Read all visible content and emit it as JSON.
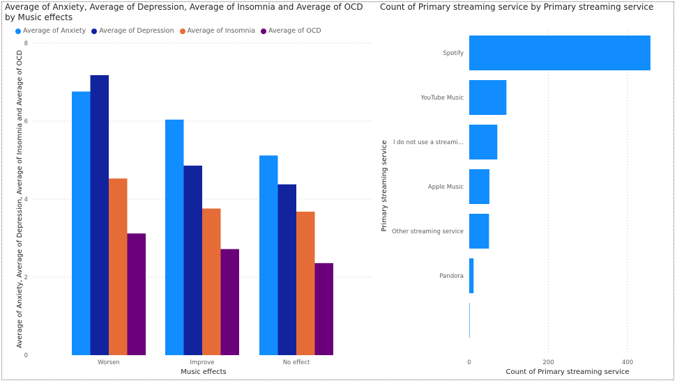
{
  "chart_data": [
    {
      "type": "bar",
      "title": "Average of Anxiety, Average of Depression, Average of Insomnia and Average of OCD by Music effects",
      "xlabel": "Music effects",
      "ylabel": "Average of Anxiety, Average of Depression, Average of Insomnia and Average of OCD",
      "categories": [
        "Worsen",
        "Improve",
        "No effect"
      ],
      "series": [
        {
          "name": "Average of Anxiety",
          "color": "#118DFF",
          "values": [
            6.76,
            6.04,
            5.12
          ]
        },
        {
          "name": "Average of Depression",
          "color": "#12239E",
          "values": [
            7.18,
            4.86,
            4.38
          ]
        },
        {
          "name": "Average of Insomnia",
          "color": "#E66C37",
          "values": [
            4.53,
            3.76,
            3.68
          ]
        },
        {
          "name": "Average of OCD",
          "color": "#6B007B",
          "values": [
            3.12,
            2.72,
            2.36
          ]
        }
      ],
      "ylim": [
        0,
        8
      ],
      "yticks": [
        0,
        2,
        4,
        6,
        8
      ],
      "grid": true,
      "legend": "top-left"
    },
    {
      "type": "bar",
      "orientation": "horizontal",
      "title": "Count of Primary streaming service by Primary streaming service",
      "xlabel": "Count of Primary streaming service",
      "ylabel": "Primary streaming service",
      "categories": [
        "Spotify",
        "YouTube Music",
        "I do not use a streami...",
        "Apple Music",
        "Other streaming service",
        "Pandora",
        ""
      ],
      "values": [
        458,
        94,
        71,
        51,
        50,
        11,
        1
      ],
      "color": "#118DFF",
      "xlim": [
        0,
        460
      ],
      "xticks": [
        0,
        200,
        400
      ],
      "grid": true
    }
  ]
}
